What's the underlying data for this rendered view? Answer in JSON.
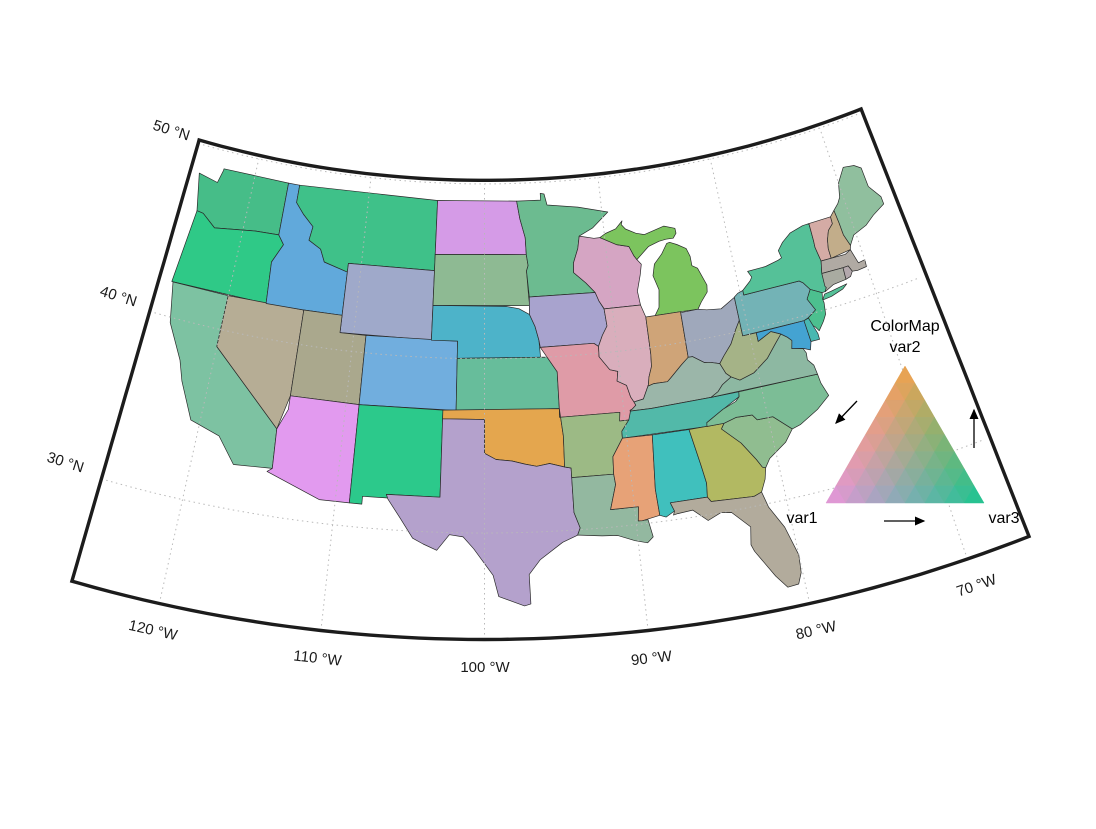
{
  "figure": {
    "background": "#ffffff"
  },
  "map": {
    "frame_color": "#1c1c1c",
    "grid_color": "#b9b9b9",
    "state_border_color": "#2a2a2a",
    "lat_labels": [
      {
        "text": "30 °N",
        "lat": 30
      },
      {
        "text": "40 °N",
        "lat": 40
      },
      {
        "text": "50 °N",
        "lat": 50
      }
    ],
    "lon_labels": [
      {
        "text": "120 °W",
        "lon": -120
      },
      {
        "text": "110 °W",
        "lon": -110
      },
      {
        "text": "100 °W",
        "lon": -100
      },
      {
        "text": "90 °W",
        "lon": -90
      },
      {
        "text": "80 °W",
        "lon": -80
      },
      {
        "text": "70 °W",
        "lon": -70
      }
    ],
    "grid_lats": [
      30,
      40,
      50
    ],
    "grid_lons": [
      -120,
      -110,
      -100,
      -90,
      -80,
      -70
    ]
  },
  "legend": {
    "title": "ColorMap",
    "axis2_label": "var2",
    "axis1_label": "var1",
    "axis3_label": "var3",
    "rows": 8,
    "corner_colors": {
      "var1": "#e796dd",
      "var2": "#f0a24b",
      "var3": "#16c591"
    }
  },
  "states": [
    {
      "id": "WA",
      "name": "Washington",
      "color": "#46bd88"
    },
    {
      "id": "OR",
      "name": "Oregon",
      "color": "#2fc987"
    },
    {
      "id": "CA",
      "name": "California",
      "color": "#7dc2a2"
    },
    {
      "id": "NV",
      "name": "Nevada",
      "color": "#b6ad95"
    },
    {
      "id": "ID",
      "name": "Idaho",
      "color": "#61a9db"
    },
    {
      "id": "MT",
      "name": "Montana",
      "color": "#3fc189"
    },
    {
      "id": "WY",
      "name": "Wyoming",
      "color": "#9fa9ca"
    },
    {
      "id": "UT",
      "name": "Utah",
      "color": "#aaa88d"
    },
    {
      "id": "CO",
      "name": "Colorado",
      "color": "#71aede"
    },
    {
      "id": "AZ",
      "name": "Arizona",
      "color": "#e29aef"
    },
    {
      "id": "NM",
      "name": "New Mexico",
      "color": "#2cc98b"
    },
    {
      "id": "ND",
      "name": "North Dakota",
      "color": "#d59be7"
    },
    {
      "id": "SD",
      "name": "South Dakota",
      "color": "#8eba93"
    },
    {
      "id": "NE",
      "name": "Nebraska",
      "color": "#4db3c9"
    },
    {
      "id": "KS",
      "name": "Kansas",
      "color": "#67bd9b"
    },
    {
      "id": "OK",
      "name": "Oklahoma",
      "color": "#e4a64e"
    },
    {
      "id": "TX",
      "name": "Texas",
      "color": "#b4a1cc"
    },
    {
      "id": "MN",
      "name": "Minnesota",
      "color": "#6cbb90"
    },
    {
      "id": "IA",
      "name": "Iowa",
      "color": "#a8a3ce"
    },
    {
      "id": "MO",
      "name": "Missouri",
      "color": "#df9ba7"
    },
    {
      "id": "AR",
      "name": "Arkansas",
      "color": "#9cba85"
    },
    {
      "id": "LA",
      "name": "Louisiana",
      "color": "#93b8a0"
    },
    {
      "id": "WI",
      "name": "Wisconsin",
      "color": "#d5a5c3"
    },
    {
      "id": "IL",
      "name": "Illinois",
      "color": "#d9aebc"
    },
    {
      "id": "MI",
      "name": "Michigan",
      "color": "#7cc45e"
    },
    {
      "id": "IN",
      "name": "Indiana",
      "color": "#cfa478"
    },
    {
      "id": "OH",
      "name": "Ohio",
      "color": "#9fa8bb"
    },
    {
      "id": "KY",
      "name": "Kentucky",
      "color": "#9bb6a9"
    },
    {
      "id": "TN",
      "name": "Tennessee",
      "color": "#52b9a9"
    },
    {
      "id": "MS",
      "name": "Mississippi",
      "color": "#e7a277"
    },
    {
      "id": "AL",
      "name": "Alabama",
      "color": "#40c0bd"
    },
    {
      "id": "GA",
      "name": "Georgia",
      "color": "#b2b962"
    },
    {
      "id": "FL",
      "name": "Florida",
      "color": "#b2ab9c"
    },
    {
      "id": "SC",
      "name": "South Carolina",
      "color": "#90bd90"
    },
    {
      "id": "NC",
      "name": "North Carolina",
      "color": "#7cbd96"
    },
    {
      "id": "VA",
      "name": "Virginia",
      "color": "#8db8a2"
    },
    {
      "id": "WV",
      "name": "West Virginia",
      "color": "#a5b387"
    },
    {
      "id": "PA",
      "name": "Pennsylvania",
      "color": "#73b3b6"
    },
    {
      "id": "NY",
      "name": "New York",
      "color": "#55c198"
    },
    {
      "id": "NJ",
      "name": "New Jersey",
      "color": "#4cc08f"
    },
    {
      "id": "MD",
      "name": "Maryland",
      "color": "#44a3d2"
    },
    {
      "id": "DE",
      "name": "Delaware",
      "color": "#49b8b1"
    },
    {
      "id": "VT",
      "name": "Vermont",
      "color": "#d4aba5"
    },
    {
      "id": "NH",
      "name": "New Hampshire",
      "color": "#c2ad8a"
    },
    {
      "id": "ME",
      "name": "Maine",
      "color": "#90bf9e"
    },
    {
      "id": "MA",
      "name": "Massachusetts",
      "color": "#b0aaa3"
    },
    {
      "id": "CT",
      "name": "Connecticut",
      "color": "#a9aba1"
    },
    {
      "id": "RI",
      "name": "Rhode Island",
      "color": "#b3a8ac"
    }
  ]
}
